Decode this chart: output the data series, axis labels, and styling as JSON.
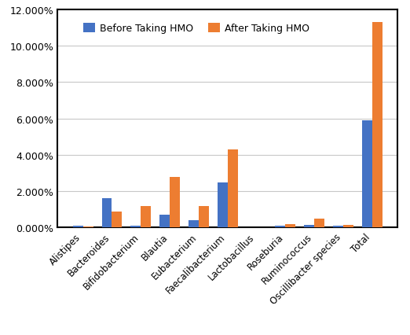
{
  "categories": [
    "Alistipes",
    "Bacteroides",
    "Bifidobacterium",
    "Blautia",
    "Eubacterium",
    "Faecalibacterium",
    "Lactobacillus",
    "Roseburia",
    "Ruminococcus",
    "Oscillibacter species",
    "Total"
  ],
  "before": [
    0.001,
    0.016,
    0.001,
    0.007,
    0.004,
    0.025,
    0.0003,
    0.001,
    0.0013,
    0.001,
    0.059
  ],
  "after": [
    0.0008,
    0.009,
    0.012,
    0.028,
    0.012,
    0.043,
    0.0003,
    0.002,
    0.005,
    0.0013,
    0.113
  ],
  "color_before": "#4472C4",
  "color_after": "#ED7D31",
  "legend_before": "Before Taking HMO",
  "legend_after": "After Taking HMO",
  "ylim": [
    0,
    0.12
  ],
  "yticks": [
    0.0,
    0.02,
    0.04,
    0.06,
    0.08,
    0.1,
    0.12
  ],
  "background_color": "#ffffff",
  "grid_color": "#c8c8c8",
  "bar_width": 0.35,
  "figsize": [
    5.22,
    4.27
  ],
  "dpi": 100
}
